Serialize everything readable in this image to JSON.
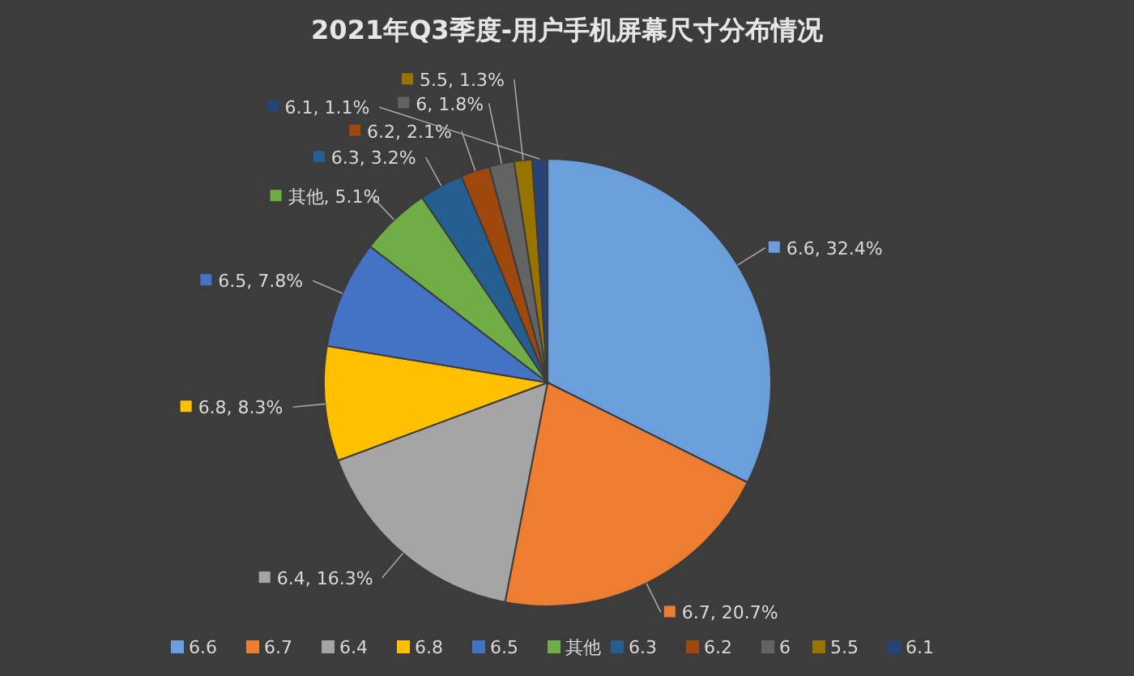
{
  "chart_data": {
    "type": "pie",
    "title": "2021年Q3季度-用户手机屏幕尺寸分布情况",
    "categories": [
      "6.6",
      "6.7",
      "6.4",
      "6.8",
      "6.5",
      "其他",
      "6.3",
      "6.2",
      "6",
      "5.5",
      "6.1"
    ],
    "values": [
      32.4,
      20.7,
      16.3,
      8.3,
      7.8,
      5.1,
      3.2,
      2.1,
      1.8,
      1.3,
      1.1
    ],
    "colors": [
      "#6a9fdc",
      "#ed7d31",
      "#a5a5a5",
      "#ffc000",
      "#4472c4",
      "#70ad47",
      "#255e91",
      "#9e480e",
      "#636363",
      "#997300",
      "#264478"
    ],
    "value_labels": [
      "6.6, 32.4%",
      "6.7, 20.7%",
      "6.4, 16.3%",
      "6.8, 8.3%",
      "6.5, 7.8%",
      "其他, 5.1%",
      "6.3, 3.2%",
      "6.2, 2.1%",
      "6, 1.8%",
      "5.5, 1.3%",
      "6.1, 1.1%"
    ],
    "legend": "bottom"
  }
}
